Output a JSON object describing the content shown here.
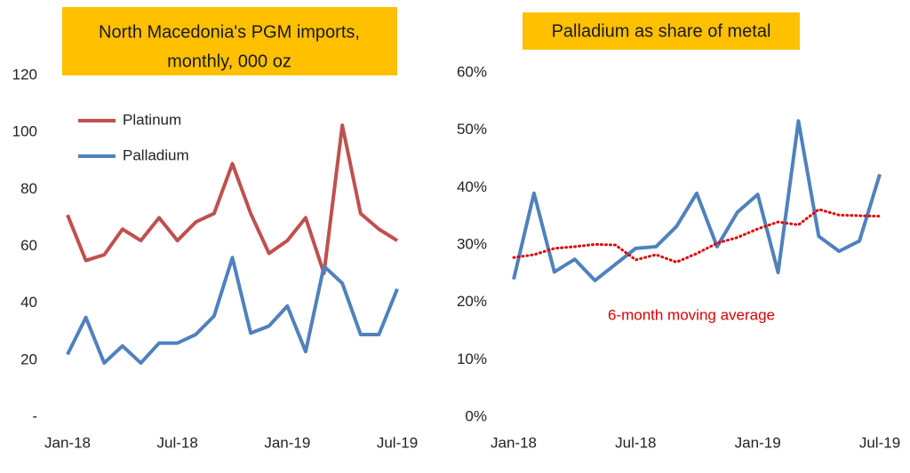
{
  "chart_data": [
    {
      "type": "line",
      "title": [
        "North Macedonia's  PGM imports,",
        "monthly, 000 oz"
      ],
      "categories": [
        "Jan-18",
        null,
        null,
        null,
        null,
        null,
        "Jul-18",
        null,
        null,
        null,
        null,
        null,
        "Jan-19",
        null,
        null,
        null,
        null,
        null,
        "Jul-19"
      ],
      "series": [
        {
          "name": "Platinum",
          "color": "#C0504D",
          "values": [
            71,
            55,
            57,
            66,
            62,
            70,
            62,
            68.5,
            71.5,
            89,
            71.5,
            57.5,
            62,
            70,
            50.5,
            102.5,
            71.5,
            66,
            62
          ]
        },
        {
          "name": "Palladium",
          "color": "#4F81BD",
          "values": [
            22,
            35,
            19,
            25,
            19,
            26,
            26,
            29,
            35.5,
            56,
            29.5,
            32,
            39,
            23,
            53,
            47,
            29,
            29,
            45
          ]
        }
      ],
      "ylim": [
        0,
        120
      ],
      "yticks": [
        {
          "value": 0,
          "label": "-"
        },
        20,
        40,
        60,
        80,
        100,
        120
      ],
      "legend": "upper left"
    },
    {
      "type": "line",
      "title": [
        "Palladium as share of metal"
      ],
      "categories": [
        "Jan-18",
        null,
        null,
        null,
        null,
        null,
        "Jul-18",
        null,
        null,
        null,
        null,
        null,
        "Jan-19",
        null,
        null,
        null,
        null,
        null,
        "Jul-19"
      ],
      "series": [
        {
          "color": "#4F81BD",
          "values": [
            24,
            39,
            25.3,
            27.5,
            23.8,
            26.6,
            29.4,
            29.7,
            33.2,
            39,
            29.7,
            35.7,
            38.8,
            25.2,
            51.6,
            31.5,
            28.9,
            30.7,
            42.3
          ]
        },
        {
          "name": "6-month moving average",
          "color": "#E00000",
          "dotted": true,
          "values": [
            27.8,
            28.3,
            29.4,
            29.7,
            30.1,
            30,
            27.4,
            28.3,
            27,
            28.5,
            30.3,
            31.3,
            32.8,
            34,
            33.5,
            36.2,
            35.2,
            35.1,
            35
          ]
        }
      ],
      "ylim": [
        0,
        60
      ],
      "yticks": [
        {
          "value": 0,
          "label": "0%"
        },
        {
          "value": 10,
          "label": "10%"
        },
        {
          "value": 20,
          "label": "20%"
        },
        {
          "value": 30,
          "label": "30%"
        },
        {
          "value": 40,
          "label": "40%"
        },
        {
          "value": 50,
          "label": "50%"
        },
        {
          "value": 60,
          "label": "60%"
        }
      ]
    }
  ]
}
